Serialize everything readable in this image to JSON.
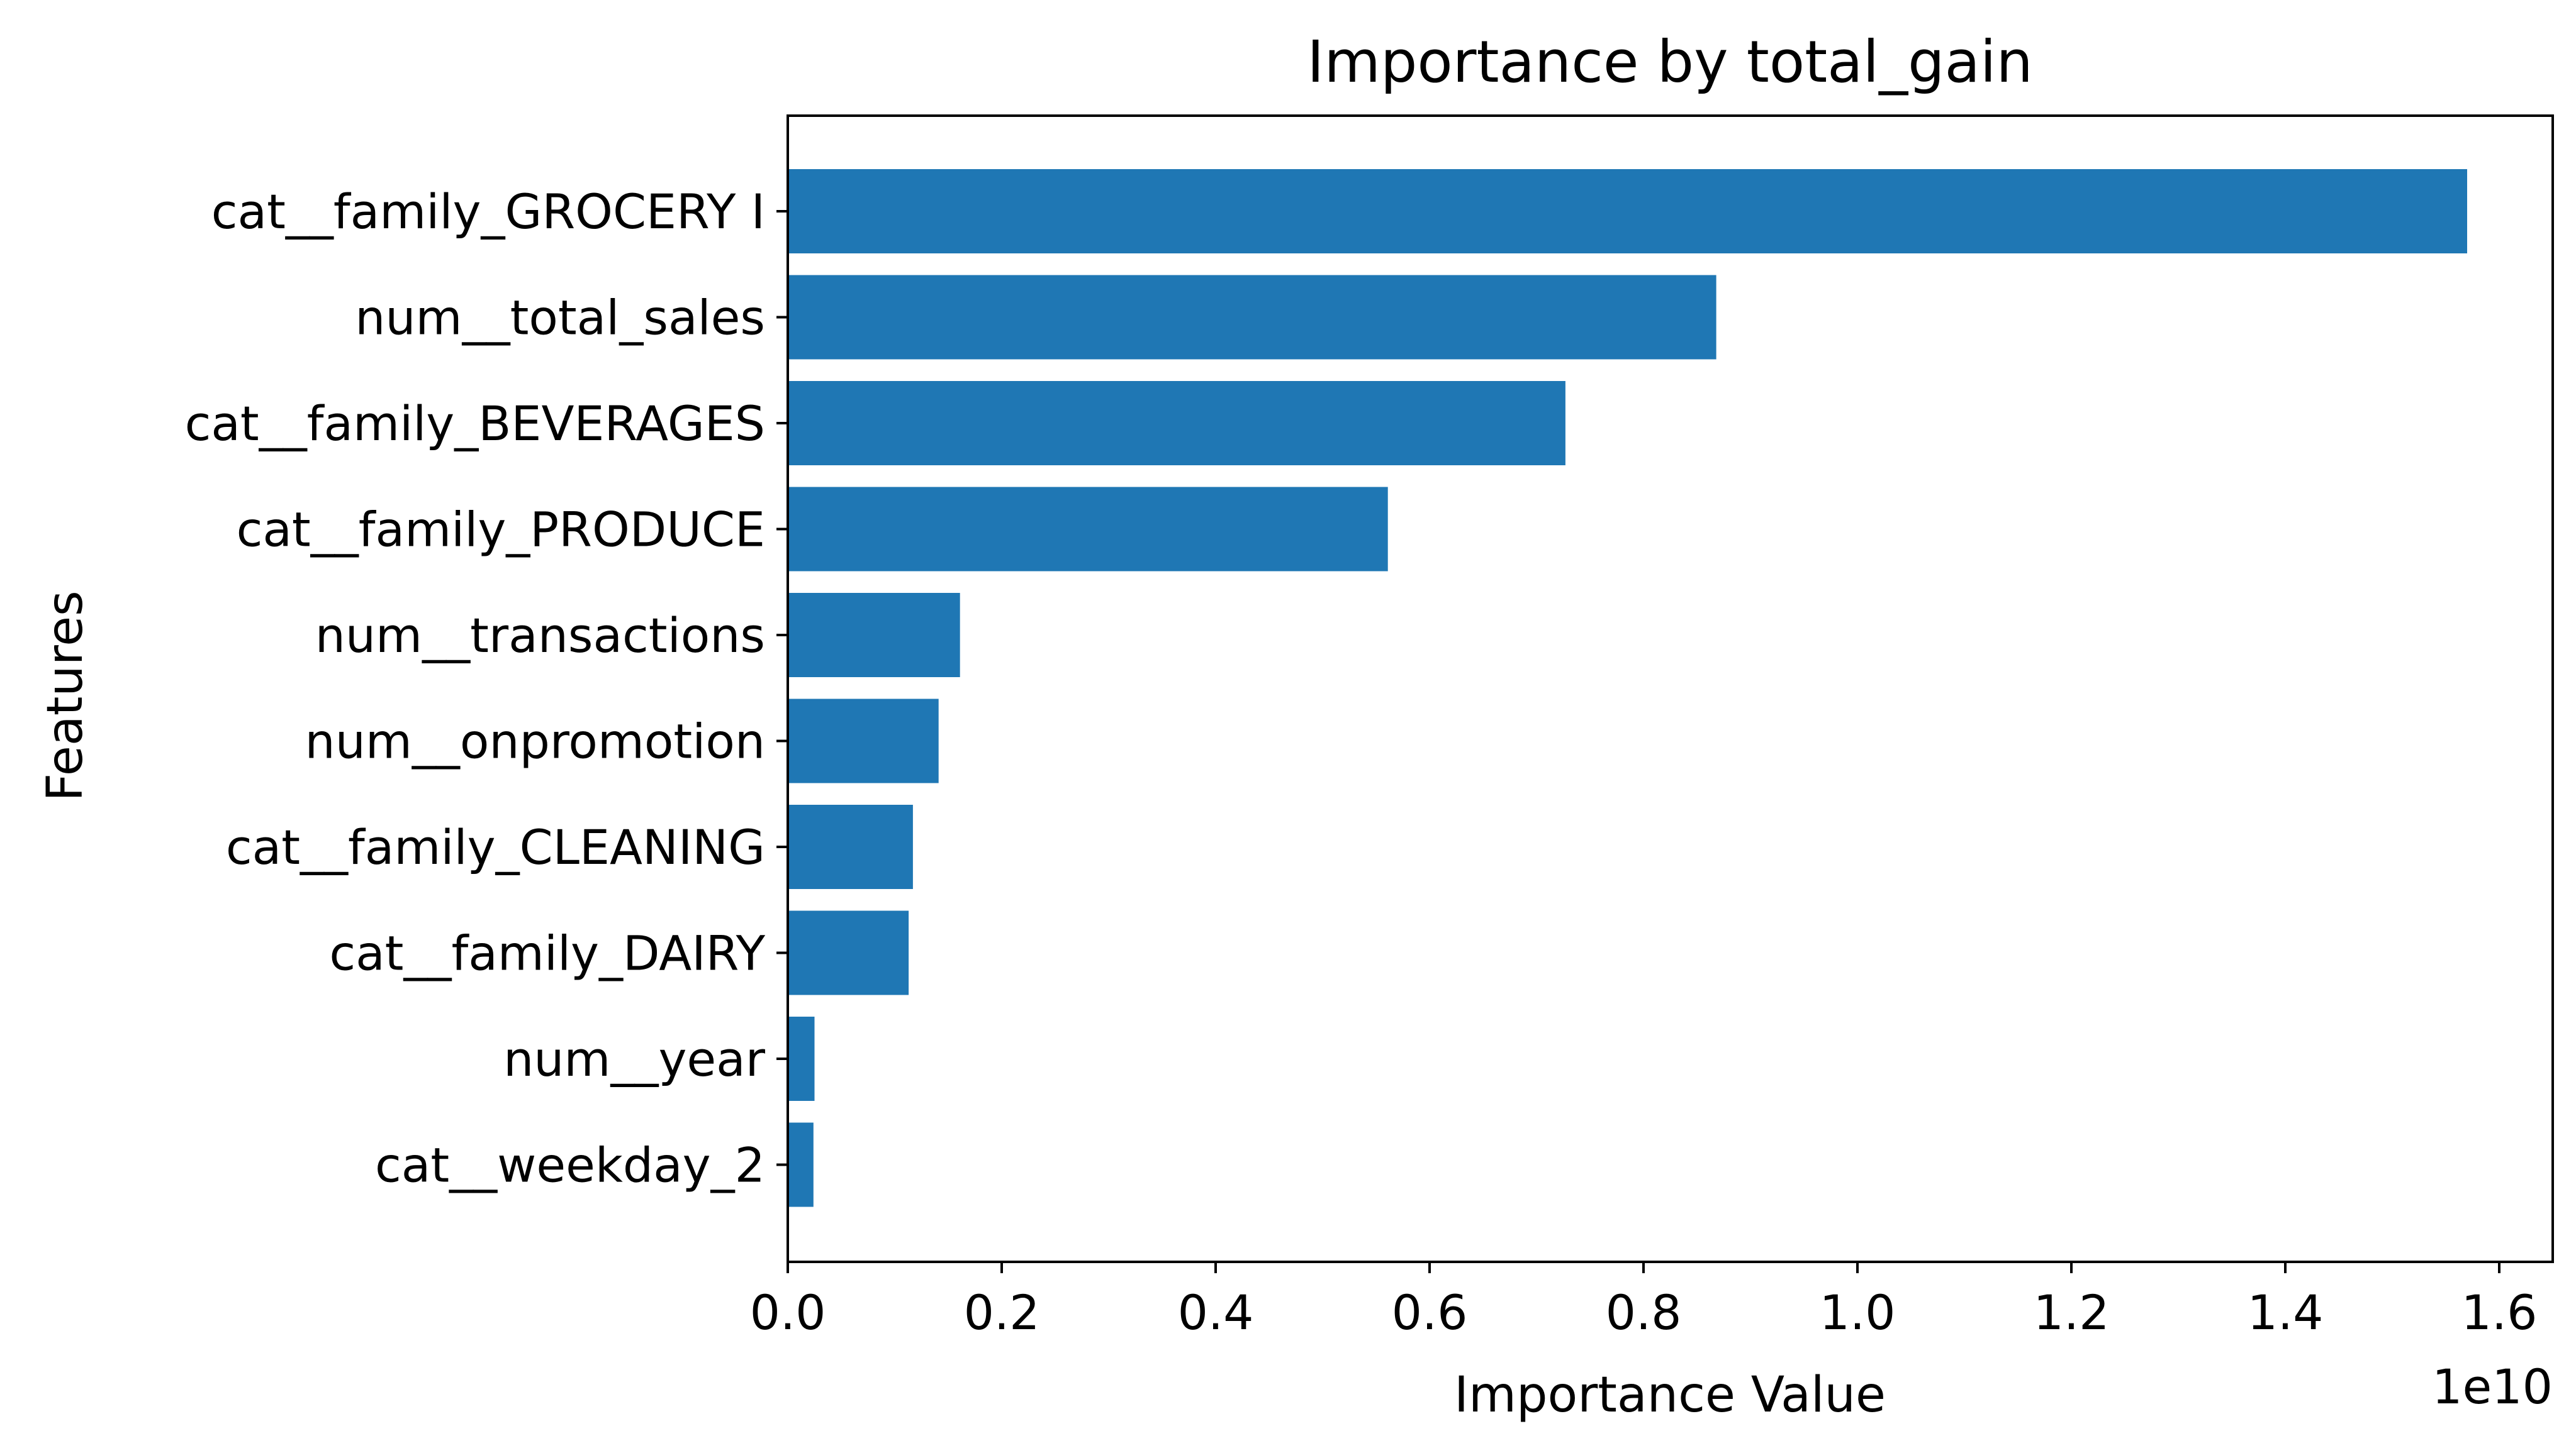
{
  "chart_data": {
    "type": "bar",
    "orientation": "horizontal",
    "title": "Importance by total_gain",
    "xlabel": "Importance Value",
    "ylabel": "Features",
    "x_scale_label": "1e10",
    "x_scale": 10000000000,
    "xlim": [
      0,
      1.65
    ],
    "xticks": [
      "0.0",
      "0.2",
      "0.4",
      "0.6",
      "0.8",
      "1.0",
      "1.2",
      "1.4",
      "1.6"
    ],
    "categories": [
      "cat__family_GROCERY I",
      "num__total_sales",
      "cat__family_BEVERAGES",
      "cat__family_PRODUCE",
      "num__transactions",
      "num__onpromotion",
      "cat__family_CLEANING",
      "cat__family_DAIRY",
      "num__year",
      "cat__weekday_2"
    ],
    "values": [
      1.57,
      0.868,
      0.727,
      0.561,
      0.161,
      0.141,
      0.117,
      0.113,
      0.025,
      0.024
    ],
    "bar_color": "#1f77b4",
    "grid": false,
    "legend": "none"
  }
}
